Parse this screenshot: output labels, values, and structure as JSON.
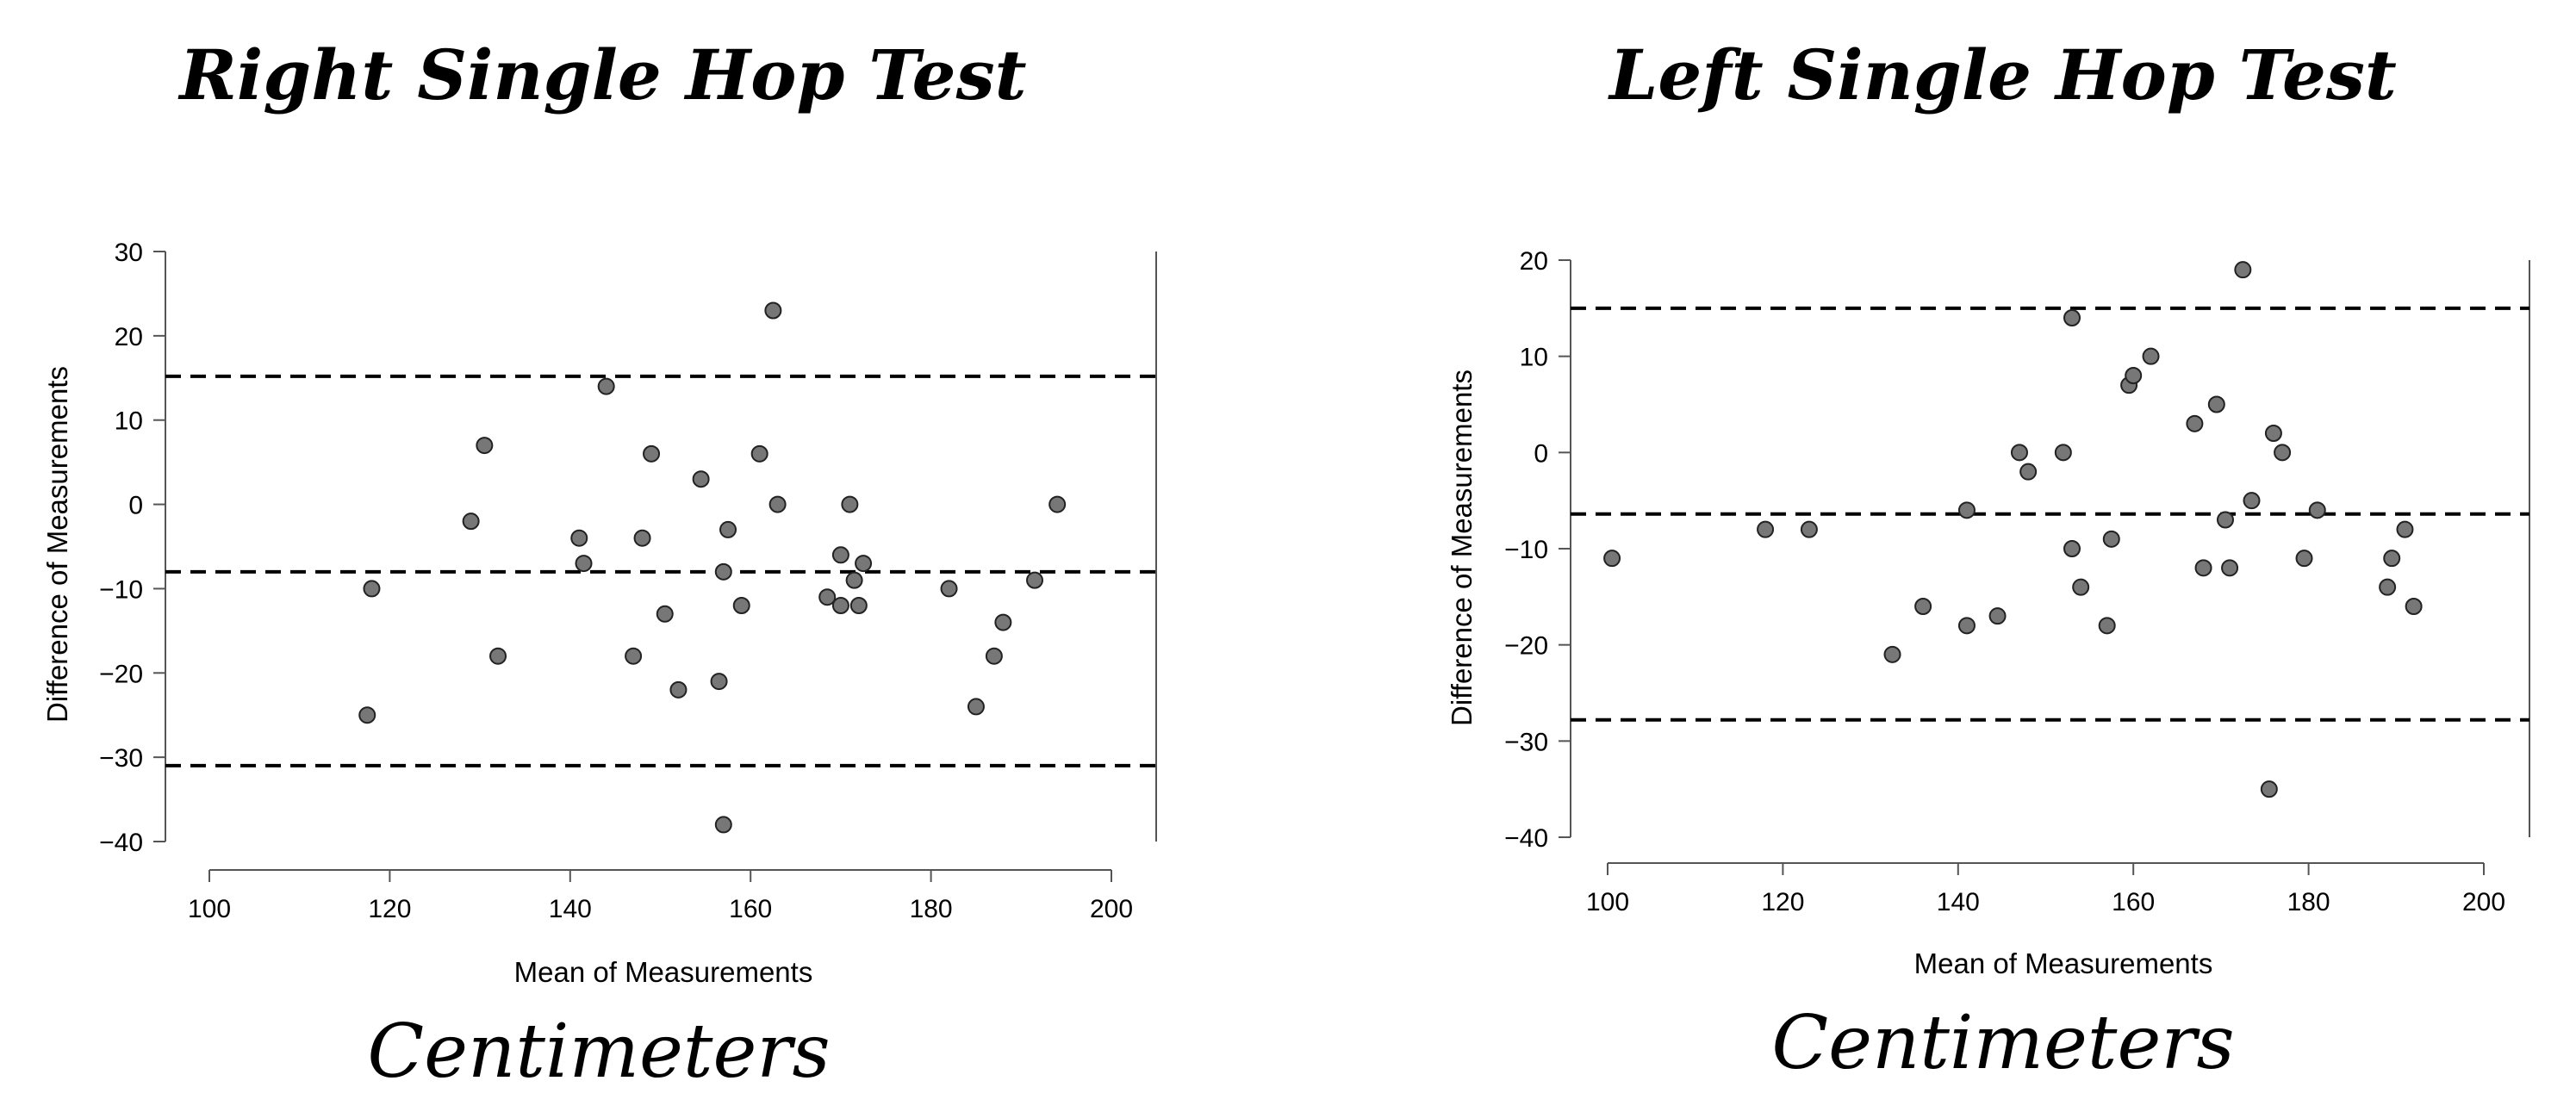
{
  "chart_data": [
    {
      "type": "scatter",
      "title": "Right Single Hop Test",
      "xlabel": "Mean of Measurements",
      "ylabel": "Difference of Measurements",
      "unit_label": "Centimeters",
      "xlim": [
        100,
        200
      ],
      "ylim": [
        -40,
        30
      ],
      "xticks": [
        100,
        120,
        140,
        160,
        180,
        200
      ],
      "yticks": [
        30,
        20,
        10,
        0,
        -10,
        -20,
        -30,
        -40
      ],
      "reference_lines": [
        15.2,
        -8,
        -31
      ],
      "points": [
        [
          117.5,
          -25
        ],
        [
          118,
          -10
        ],
        [
          129,
          -2
        ],
        [
          130.5,
          7
        ],
        [
          132,
          -18
        ],
        [
          141,
          -4
        ],
        [
          141.5,
          -7
        ],
        [
          144,
          14
        ],
        [
          147,
          -18
        ],
        [
          148,
          -4
        ],
        [
          149,
          6
        ],
        [
          150.5,
          -13
        ],
        [
          152,
          -22
        ],
        [
          154.5,
          3
        ],
        [
          156.5,
          -21
        ],
        [
          157,
          -8
        ],
        [
          157.5,
          -3
        ],
        [
          157,
          -38
        ],
        [
          159,
          -12
        ],
        [
          161,
          6
        ],
        [
          162.5,
          23
        ],
        [
          163,
          0
        ],
        [
          168.5,
          -11
        ],
        [
          170,
          -12
        ],
        [
          170,
          -6
        ],
        [
          171,
          0
        ],
        [
          171.5,
          -9
        ],
        [
          172,
          -12
        ],
        [
          172.5,
          -7
        ],
        [
          182,
          -10
        ],
        [
          185,
          -24
        ],
        [
          187,
          -18
        ],
        [
          188,
          -14
        ],
        [
          191.5,
          -9
        ],
        [
          194,
          0
        ]
      ]
    },
    {
      "type": "scatter",
      "title": "Left Single Hop Test",
      "xlabel": "Mean of Measurements",
      "ylabel": "Difference of Measurements",
      "unit_label": "Centimeters",
      "xlim": [
        100,
        200
      ],
      "ylim": [
        -40,
        20
      ],
      "xticks": [
        100,
        120,
        140,
        160,
        180,
        200
      ],
      "yticks": [
        20,
        10,
        0,
        -10,
        -20,
        -30,
        -40
      ],
      "reference_lines": [
        15,
        -6.4,
        -27.8
      ],
      "points": [
        [
          100.5,
          -11
        ],
        [
          118,
          -8
        ],
        [
          123,
          -8
        ],
        [
          132.5,
          -21
        ],
        [
          136,
          -16
        ],
        [
          141,
          -18
        ],
        [
          141,
          -6
        ],
        [
          144.5,
          -17
        ],
        [
          147,
          0
        ],
        [
          148,
          -2
        ],
        [
          152,
          0
        ],
        [
          153,
          14
        ],
        [
          153,
          -10
        ],
        [
          154,
          -14
        ],
        [
          157,
          -18
        ],
        [
          157.5,
          -9
        ],
        [
          159.5,
          7
        ],
        [
          160,
          8
        ],
        [
          162,
          10
        ],
        [
          167,
          3
        ],
        [
          168,
          -12
        ],
        [
          169.5,
          5
        ],
        [
          170.5,
          -7
        ],
        [
          171,
          -12
        ],
        [
          172.5,
          19
        ],
        [
          173.5,
          -5
        ],
        [
          175.5,
          -35
        ],
        [
          176,
          2
        ],
        [
          177,
          0
        ],
        [
          179.5,
          -11
        ],
        [
          181,
          -6
        ],
        [
          189,
          -14
        ],
        [
          189.5,
          -11
        ],
        [
          191,
          -8
        ],
        [
          192,
          -16
        ]
      ]
    }
  ]
}
